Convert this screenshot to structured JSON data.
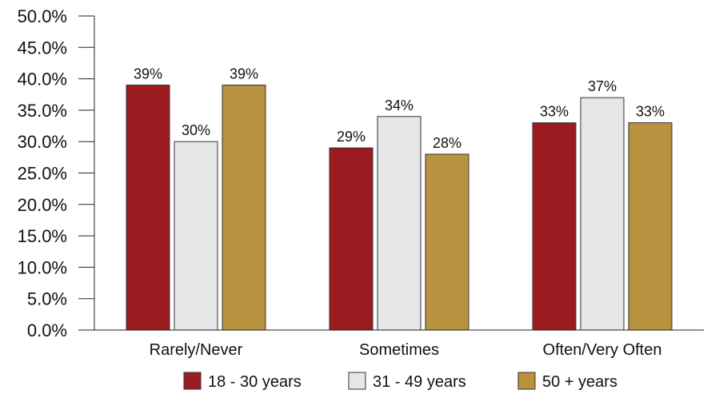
{
  "chart_data": {
    "type": "bar",
    "categories": [
      "Rarely/Never",
      "Sometimes",
      "Often/Very Often"
    ],
    "series": [
      {
        "name": "18 - 30 years",
        "values": [
          39,
          29,
          33
        ],
        "labels": [
          "39%",
          "29%",
          "33%"
        ],
        "color": "#9b1b20"
      },
      {
        "name": "31 - 49 years",
        "values": [
          30,
          34,
          37
        ],
        "labels": [
          "30%",
          "34%",
          "37%"
        ],
        "color": "#e6e6e8"
      },
      {
        "name": "50 + years",
        "values": [
          39,
          28,
          33
        ],
        "labels": [
          "39%",
          "28%",
          "33%"
        ],
        "color": "#b8923e"
      }
    ],
    "ylim": [
      0,
      50
    ],
    "yticks": [
      "0.0%",
      "5.0%",
      "10.0%",
      "15.0%",
      "20.0%",
      "25.0%",
      "30.0%",
      "35.0%",
      "40.0%",
      "45.0%",
      "50.0%"
    ],
    "legend_position": "bottom",
    "grid": false
  }
}
